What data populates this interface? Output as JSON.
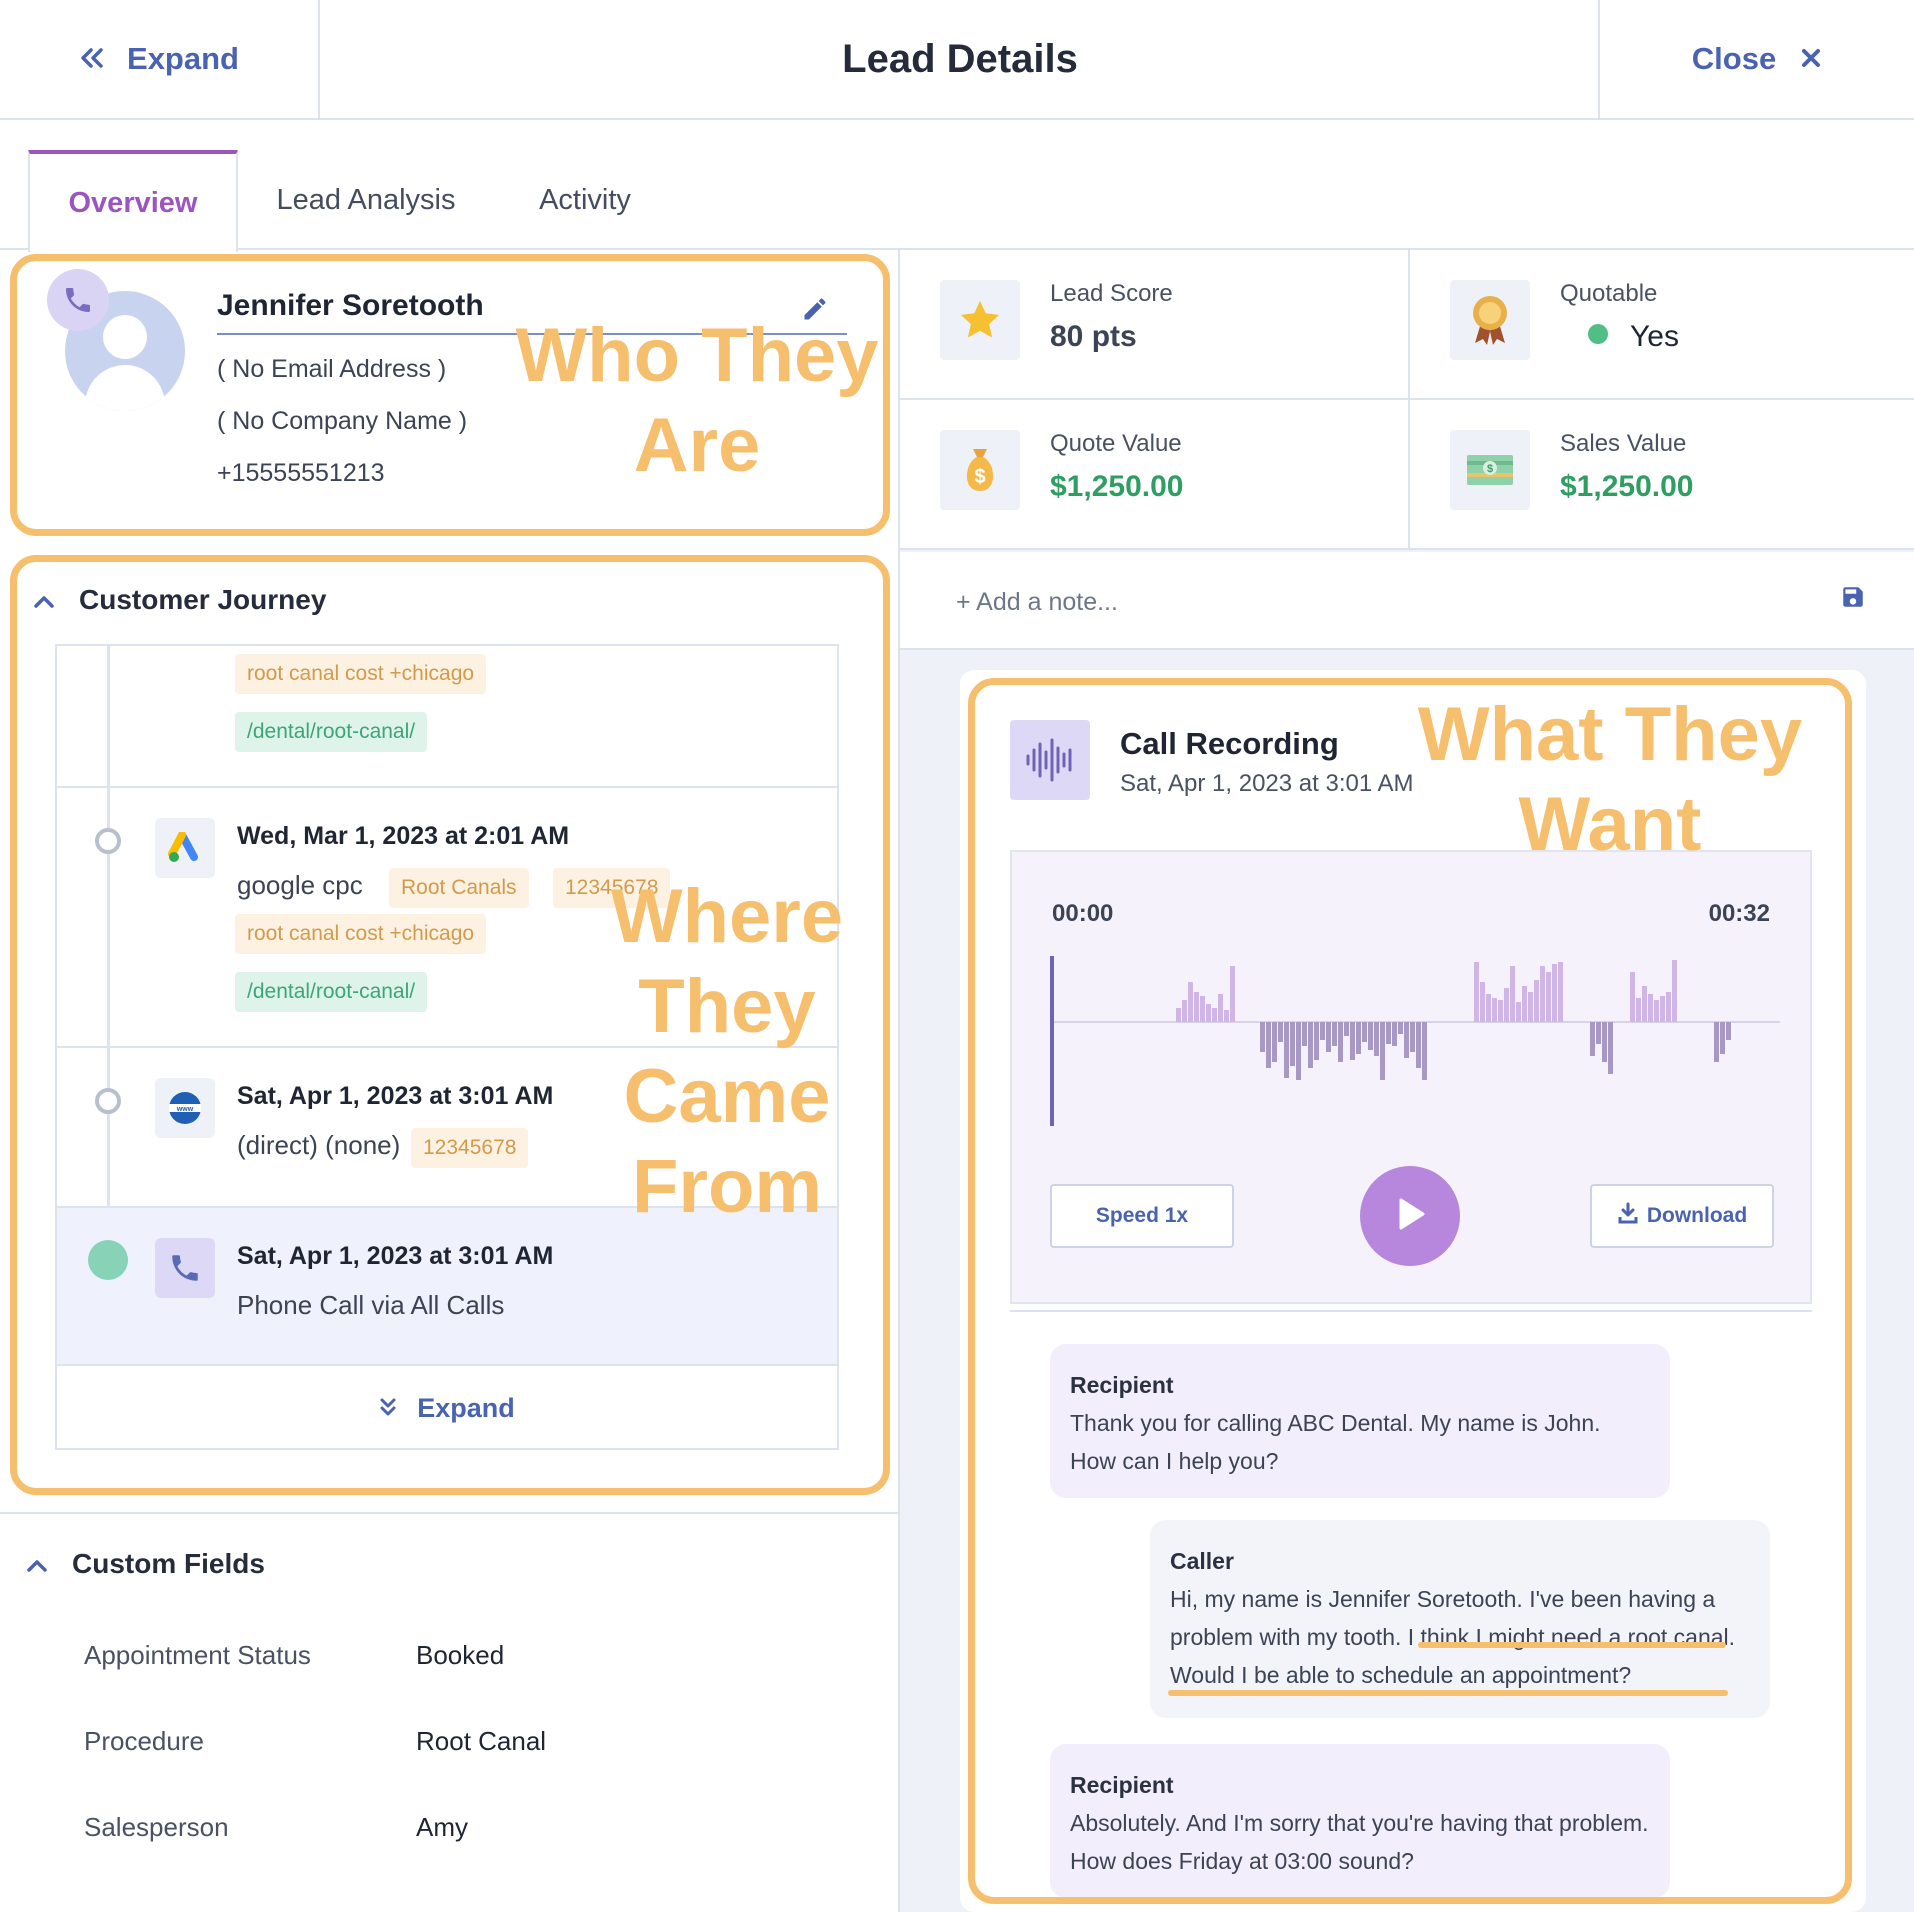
{
  "header": {
    "expand_label": "Expand",
    "title": "Lead Details",
    "close_label": "Close"
  },
  "tabs": [
    {
      "label": "Overview",
      "active": true
    },
    {
      "label": "Lead Analysis",
      "active": false
    },
    {
      "label": "Activity",
      "active": false
    }
  ],
  "contact": {
    "name": "Jennifer Soretooth",
    "email": "( No Email Address )",
    "company": "( No Company Name )",
    "phone": "+15555551213"
  },
  "callouts": {
    "who": "Who They Are",
    "where": "Where They Came From",
    "what": "What They Want"
  },
  "journey": {
    "title": "Customer Journey",
    "expand_label": "Expand",
    "items": [
      {
        "tags": [
          {
            "text": "root canal cost +chicago",
            "color": "orange"
          },
          {
            "text": "/dental/root-canal/",
            "color": "green"
          }
        ]
      },
      {
        "date": "Wed, Mar 1, 2023 at 2:01 AM",
        "icon": "google-ads-icon",
        "source": "google cpc",
        "tags": [
          {
            "text": "Root Canals",
            "color": "orange"
          },
          {
            "text": "12345678",
            "color": "orange"
          },
          {
            "text": "root canal cost +chicago",
            "color": "orange"
          },
          {
            "text": "/dental/root-canal/",
            "color": "green"
          }
        ]
      },
      {
        "date": "Sat, Apr 1, 2023 at 3:01 AM",
        "icon": "www-globe-icon",
        "source": "(direct) (none)",
        "tags": [
          {
            "text": "12345678",
            "color": "orange"
          }
        ]
      },
      {
        "date": "Sat, Apr 1, 2023 at 3:01 AM",
        "icon": "phone-icon",
        "source": "Phone Call via All Calls",
        "current": true
      }
    ]
  },
  "custom_fields": {
    "title": "Custom Fields",
    "rows": [
      {
        "label": "Appointment Status",
        "value": "Booked"
      },
      {
        "label": "Procedure",
        "value": "Root Canal"
      },
      {
        "label": "Salesperson",
        "value": "Amy"
      }
    ]
  },
  "stats": {
    "lead_score": {
      "label": "Lead Score",
      "value": "80 pts",
      "icon": "star-icon"
    },
    "quotable": {
      "label": "Quotable",
      "value": "Yes",
      "icon": "award-ribbon-icon"
    },
    "quote_value": {
      "label": "Quote Value",
      "value": "$1,250.00",
      "icon": "money-bag-icon"
    },
    "sales_value": {
      "label": "Sales Value",
      "value": "$1,250.00",
      "icon": "cash-icon"
    }
  },
  "note": {
    "placeholder": "+ Add a note..."
  },
  "recording": {
    "title": "Call Recording",
    "date": "Sat, Apr 1, 2023 at 3:01 AM",
    "time_start": "00:00",
    "time_end": "00:32",
    "speed_label": "Speed 1x",
    "download_label": "Download"
  },
  "transcript": [
    {
      "speaker": "Recipient",
      "text": "Thank you for calling ABC Dental. My name is John. How can I help you?"
    },
    {
      "speaker": "Caller",
      "text": "Hi, my name is Jennifer Soretooth. I've been having a problem with my tooth. I think I might need a root canal. Would I be able to schedule an appointment?"
    },
    {
      "speaker": "Recipient",
      "text": "Absolutely. And I'm sorry that you're having that problem. How does Friday at 03:00 sound?"
    }
  ],
  "colors": {
    "accent": "#9a55c0",
    "link": "#4a63b0",
    "callout": "#f6bf6e",
    "green": "#2f9e62"
  }
}
